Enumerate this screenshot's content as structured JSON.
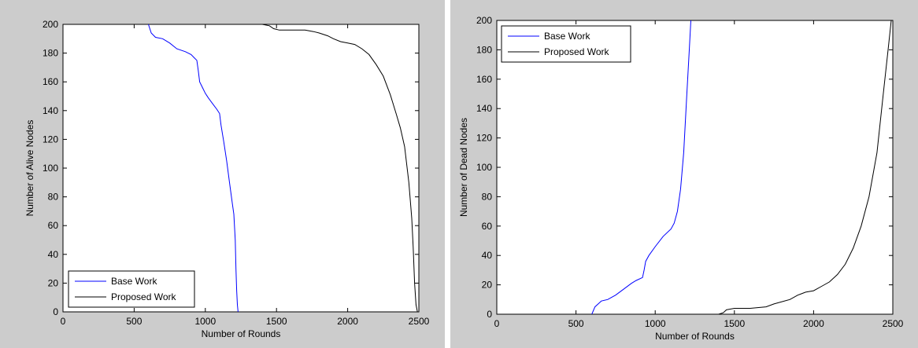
{
  "chart_data": [
    {
      "type": "line",
      "xlabel": "Number of Rounds",
      "ylabel": "Number of Alive Nodes",
      "xlim": [
        0,
        2500
      ],
      "ylim": [
        0,
        200
      ],
      "xticks": [
        "0",
        "500",
        "1000",
        "1500",
        "2000",
        "2500"
      ],
      "yticks": [
        "0",
        "20",
        "40",
        "60",
        "80",
        "100",
        "120",
        "140",
        "160",
        "180",
        "200"
      ],
      "grid": false,
      "legend_position": "bottom-left",
      "series": [
        {
          "name": "Base Work",
          "color": "#0000ff",
          "points": [
            [
              600,
              200
            ],
            [
              620,
              194
            ],
            [
              650,
              191
            ],
            [
              700,
              190
            ],
            [
              750,
              187
            ],
            [
              800,
              183
            ],
            [
              860,
              181
            ],
            [
              900,
              179
            ],
            [
              920,
              177
            ],
            [
              940,
              175
            ],
            [
              950,
              168
            ],
            [
              960,
              160
            ],
            [
              980,
              156
            ],
            [
              1000,
              152
            ],
            [
              1020,
              149
            ],
            [
              1050,
              145
            ],
            [
              1080,
              141
            ],
            [
              1100,
              138
            ],
            [
              1110,
              130
            ],
            [
              1130,
              118
            ],
            [
              1150,
              105
            ],
            [
              1170,
              90
            ],
            [
              1190,
              75
            ],
            [
              1200,
              68
            ],
            [
              1210,
              50
            ],
            [
              1215,
              30
            ],
            [
              1220,
              15
            ],
            [
              1225,
              5
            ],
            [
              1230,
              0
            ]
          ]
        },
        {
          "name": "Proposed Work",
          "color": "#000000",
          "points": [
            [
              1400,
              200
            ],
            [
              1450,
              199
            ],
            [
              1480,
              197
            ],
            [
              1520,
              196
            ],
            [
              1600,
              196
            ],
            [
              1700,
              196
            ],
            [
              1760,
              195
            ],
            [
              1800,
              194
            ],
            [
              1860,
              192
            ],
            [
              1900,
              190
            ],
            [
              1950,
              188
            ],
            [
              2000,
              187
            ],
            [
              2050,
              186
            ],
            [
              2100,
              183
            ],
            [
              2150,
              179
            ],
            [
              2200,
              172
            ],
            [
              2250,
              164
            ],
            [
              2300,
              151
            ],
            [
              2340,
              138
            ],
            [
              2370,
              128
            ],
            [
              2400,
              115
            ],
            [
              2430,
              90
            ],
            [
              2450,
              65
            ],
            [
              2460,
              45
            ],
            [
              2470,
              20
            ],
            [
              2480,
              5
            ],
            [
              2490,
              0
            ]
          ]
        }
      ]
    },
    {
      "type": "line",
      "xlabel": "Number of Rounds",
      "ylabel": "Number of Dead Nodes",
      "xlim": [
        0,
        2500
      ],
      "ylim": [
        0,
        200
      ],
      "xticks": [
        "0",
        "500",
        "1000",
        "1500",
        "2000",
        "2500"
      ],
      "yticks": [
        "0",
        "20",
        "40",
        "60",
        "80",
        "100",
        "120",
        "140",
        "160",
        "180",
        "200"
      ],
      "grid": false,
      "legend_position": "top-left",
      "series": [
        {
          "name": "Base Work",
          "color": "#0000ff",
          "points": [
            [
              600,
              0
            ],
            [
              620,
              5
            ],
            [
              640,
              7
            ],
            [
              660,
              9
            ],
            [
              700,
              10
            ],
            [
              750,
              13
            ],
            [
              800,
              17
            ],
            [
              850,
              21
            ],
            [
              880,
              23
            ],
            [
              920,
              25
            ],
            [
              930,
              30
            ],
            [
              940,
              36
            ],
            [
              960,
              40
            ],
            [
              1000,
              46
            ],
            [
              1050,
              53
            ],
            [
              1100,
              58
            ],
            [
              1120,
              62
            ],
            [
              1140,
              70
            ],
            [
              1160,
              85
            ],
            [
              1180,
              110
            ],
            [
              1200,
              150
            ],
            [
              1215,
              180
            ],
            [
              1225,
              200
            ]
          ]
        },
        {
          "name": "Proposed Work",
          "color": "#000000",
          "points": [
            [
              1400,
              0
            ],
            [
              1430,
              1
            ],
            [
              1450,
              3
            ],
            [
              1500,
              4
            ],
            [
              1600,
              4
            ],
            [
              1700,
              5
            ],
            [
              1750,
              7
            ],
            [
              1850,
              10
            ],
            [
              1900,
              13
            ],
            [
              1950,
              15
            ],
            [
              2000,
              16
            ],
            [
              2050,
              19
            ],
            [
              2100,
              22
            ],
            [
              2150,
              27
            ],
            [
              2200,
              34
            ],
            [
              2250,
              45
            ],
            [
              2300,
              60
            ],
            [
              2350,
              80
            ],
            [
              2400,
              110
            ],
            [
              2440,
              150
            ],
            [
              2470,
              180
            ],
            [
              2490,
              200
            ]
          ]
        }
      ]
    }
  ]
}
